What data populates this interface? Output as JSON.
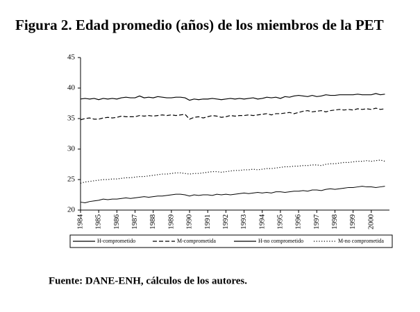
{
  "chart_data": {
    "type": "line",
    "title": "Figura 2. Edad promedio (años) de los miembros de la PET",
    "source": "Fuente: DANE-ENH, cálculos de los autores.",
    "x": [
      1984,
      1984.25,
      1984.5,
      1984.75,
      1985,
      1985.25,
      1985.5,
      1985.75,
      1986,
      1986.25,
      1986.5,
      1986.75,
      1987,
      1987.25,
      1987.5,
      1987.75,
      1988,
      1988.25,
      1988.5,
      1988.75,
      1989,
      1989.25,
      1989.5,
      1989.75,
      1990,
      1990.25,
      1990.5,
      1990.75,
      1991,
      1991.25,
      1991.5,
      1991.75,
      1992,
      1992.25,
      1992.5,
      1992.75,
      1993,
      1993.25,
      1993.5,
      1993.75,
      1994,
      1994.25,
      1994.5,
      1994.75,
      1995,
      1995.25,
      1995.5,
      1995.75,
      1996,
      1996.25,
      1996.5,
      1996.75,
      1997,
      1997.25,
      1997.5,
      1997.75,
      1998,
      1998.25,
      1998.5,
      1998.75,
      1999,
      1999.25,
      1999.5,
      1999.75,
      2000,
      2000.25,
      2000.5,
      2000.75
    ],
    "xlim": [
      1984,
      2001
    ],
    "xticks": [
      1984,
      1985,
      1986,
      1987,
      1988,
      1989,
      1990,
      1991,
      1992,
      1993,
      1994,
      1995,
      1996,
      1997,
      1998,
      1999,
      2000
    ],
    "ylim": [
      20,
      45
    ],
    "yticks": [
      20,
      25,
      30,
      35,
      40,
      45
    ],
    "legend": "bottom",
    "series": [
      {
        "name": "H-comprometido",
        "color": "#000000",
        "dash": "solid",
        "values": [
          38.2,
          38.3,
          38.2,
          38.3,
          38.1,
          38.3,
          38.2,
          38.3,
          38.2,
          38.4,
          38.5,
          38.4,
          38.4,
          38.7,
          38.4,
          38.5,
          38.4,
          38.6,
          38.5,
          38.4,
          38.4,
          38.5,
          38.5,
          38.4,
          38.0,
          38.2,
          38.1,
          38.2,
          38.2,
          38.3,
          38.2,
          38.1,
          38.2,
          38.3,
          38.2,
          38.3,
          38.2,
          38.3,
          38.4,
          38.2,
          38.3,
          38.5,
          38.4,
          38.5,
          38.3,
          38.6,
          38.5,
          38.7,
          38.8,
          38.7,
          38.6,
          38.8,
          38.6,
          38.7,
          38.9,
          38.8,
          38.8,
          38.9,
          38.9,
          38.9,
          38.9,
          39.0,
          38.9,
          38.9,
          38.9,
          39.1,
          38.9,
          39.0
        ]
      },
      {
        "name": "M-comprometida",
        "color": "#000000",
        "dash": "dashed",
        "values": [
          34.8,
          35.0,
          35.1,
          34.9,
          34.9,
          35.1,
          35.2,
          35.1,
          35.2,
          35.4,
          35.3,
          35.3,
          35.3,
          35.5,
          35.4,
          35.5,
          35.4,
          35.5,
          35.6,
          35.5,
          35.6,
          35.5,
          35.6,
          35.7,
          34.9,
          35.2,
          35.3,
          35.1,
          35.3,
          35.5,
          35.4,
          35.2,
          35.3,
          35.5,
          35.4,
          35.5,
          35.5,
          35.6,
          35.5,
          35.6,
          35.7,
          35.8,
          35.6,
          35.8,
          35.8,
          35.9,
          36.0,
          35.8,
          36.0,
          36.2,
          36.3,
          36.1,
          36.2,
          36.3,
          36.1,
          36.3,
          36.4,
          36.5,
          36.4,
          36.5,
          36.4,
          36.6,
          36.5,
          36.6,
          36.5,
          36.7,
          36.5,
          36.6
        ]
      },
      {
        "name": "H-no comprometido",
        "color": "#000000",
        "dash": "solid",
        "values": [
          21.3,
          21.2,
          21.4,
          21.5,
          21.6,
          21.8,
          21.7,
          21.8,
          21.8,
          21.9,
          22.0,
          21.9,
          22.0,
          22.1,
          22.2,
          22.1,
          22.2,
          22.3,
          22.3,
          22.4,
          22.5,
          22.6,
          22.6,
          22.5,
          22.3,
          22.5,
          22.4,
          22.5,
          22.5,
          22.4,
          22.6,
          22.5,
          22.6,
          22.5,
          22.6,
          22.7,
          22.8,
          22.7,
          22.8,
          22.9,
          22.8,
          22.9,
          22.8,
          23.0,
          23.0,
          22.9,
          23.0,
          23.1,
          23.1,
          23.2,
          23.1,
          23.3,
          23.3,
          23.2,
          23.4,
          23.5,
          23.4,
          23.5,
          23.6,
          23.7,
          23.7,
          23.8,
          23.9,
          23.8,
          23.8,
          23.7,
          23.8,
          23.9
        ]
      },
      {
        "name": "M-no comprometida",
        "color": "#000000",
        "dash": "dotted",
        "values": [
          24.4,
          24.6,
          24.7,
          24.8,
          24.9,
          25.0,
          25.0,
          25.1,
          25.1,
          25.2,
          25.3,
          25.3,
          25.4,
          25.5,
          25.5,
          25.6,
          25.7,
          25.8,
          25.9,
          25.9,
          26.0,
          26.1,
          26.1,
          26.0,
          25.9,
          26.0,
          26.0,
          26.1,
          26.2,
          26.3,
          26.3,
          26.2,
          26.3,
          26.4,
          26.5,
          26.5,
          26.6,
          26.6,
          26.7,
          26.6,
          26.7,
          26.8,
          26.8,
          26.9,
          27.0,
          27.1,
          27.1,
          27.2,
          27.2,
          27.3,
          27.3,
          27.4,
          27.4,
          27.3,
          27.5,
          27.6,
          27.6,
          27.7,
          27.8,
          27.8,
          27.9,
          28.0,
          28.0,
          28.1,
          28.0,
          28.1,
          28.2,
          28.0
        ]
      }
    ]
  }
}
